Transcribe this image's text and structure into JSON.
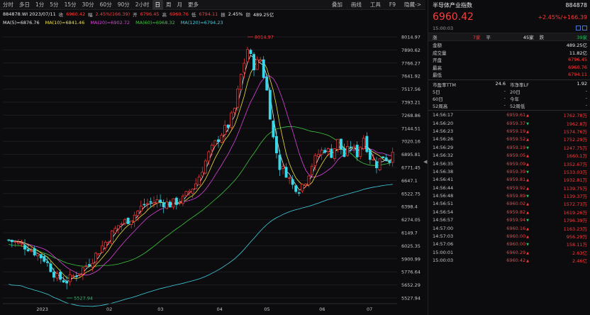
{
  "toolbar": {
    "periods": [
      "分时",
      "多日",
      "1分",
      "5分",
      "15分",
      "30分",
      "60分",
      "90分",
      "2小时",
      "日",
      "周",
      "月",
      "更多"
    ],
    "active_period": "日",
    "tools": [
      "叠加",
      "画线",
      "工具",
      "F9",
      "隐藏->"
    ]
  },
  "quote": {
    "code_date": "884878.WI 2023/07/11",
    "close_label": "收",
    "close_value": "6960.42",
    "change_label": "幅",
    "change_value": "2.45%(166.39)",
    "open_label": "开",
    "open_value": "6796.45",
    "high_label": "高",
    "high_value": "6960.76",
    "low_label": "低",
    "low_value": "6794.11",
    "amp_label": "振",
    "amp_value": "2.45%",
    "amount_label": "额",
    "amount_value": "489.25亿"
  },
  "ma": {
    "ma5": "MA(5)=6876.76",
    "ma10": "MA(10)=6841.46",
    "ma20": "MA(20)=6902.72",
    "ma60": "MA(60)=6968.32",
    "ma120": "MA(120)=6794.23",
    "colors": {
      "ma5": "#e8e8e8",
      "ma10": "#f0e040",
      "ma20": "#e040e0",
      "ma60": "#3cc83c",
      "ma120": "#40d0e0"
    }
  },
  "chart_data": {
    "type": "candlestick",
    "ytick_labels": [
      "8014.97",
      "7890.62",
      "7766.27",
      "7641.92",
      "7517.56",
      "7393.21",
      "7268.86",
      "7144.51",
      "7020.16",
      "6895.81",
      "6771.45",
      "6647.1",
      "6522.75",
      "6398.4",
      "6274.05",
      "6149.7",
      "6025.35",
      "5900.99",
      "5776.64",
      "5652.29",
      "5527.94"
    ],
    "ylim": [
      5527.94,
      8014.97
    ],
    "x_labels": [
      "2023",
      "02",
      "03",
      "04",
      "05",
      "06",
      "07"
    ],
    "max_annotation": "8014.97",
    "min_annotation": "5527.94",
    "colors": {
      "up": "#ff3b3b",
      "down": "#38d8e8"
    }
  },
  "panel": {
    "code": "884878",
    "name": "半导体产业指数",
    "price": "6960.42",
    "change_pct": "+2.45%",
    "change_pts": "+166.39",
    "time": "15:00:03",
    "breadth": {
      "up_label": "涨",
      "up_value": "7家",
      "flat_label": "平",
      "flat_value": "45家",
      "down_label": "跌",
      "down_value": "39家"
    },
    "stats": [
      {
        "label": "金额",
        "value": "489.25亿"
      },
      {
        "label": "成交量",
        "value": "11.82亿"
      },
      {
        "label": "开盘",
        "value": "6796.45"
      },
      {
        "label": "最高",
        "value": "6960.76"
      },
      {
        "label": "最低",
        "value": "6794.11"
      }
    ],
    "ratios": {
      "pe_label": "市盈率TTM",
      "pe_value": "24.6",
      "pb_label": "市净率LF",
      "pb_value": "1.92"
    },
    "returns": [
      {
        "l1": "5日",
        "v1": "-",
        "l2": "20日",
        "v2": "-"
      },
      {
        "l1": "60日",
        "v1": "-",
        "l2": "今年",
        "v2": "-"
      },
      {
        "l1": "52周高",
        "v1": "-",
        "l2": "52周低",
        "v2": "-"
      }
    ],
    "ticks": [
      {
        "time": "14:56:17",
        "price": "6959.61",
        "vol": "1762.78万"
      },
      {
        "time": "14:56:20",
        "price": "6959.37",
        "vol": "1962.8万"
      },
      {
        "time": "14:56:23",
        "price": "6959.19",
        "vol": "1574.76万"
      },
      {
        "time": "14:56:26",
        "price": "6959.52",
        "vol": "1752.29万"
      },
      {
        "time": "14:56:29",
        "price": "6959.19",
        "vol": "1247.75万"
      },
      {
        "time": "14:56:32",
        "price": "6959.05",
        "vol": "1660.1万"
      },
      {
        "time": "14:56:35",
        "price": "6959.09",
        "vol": "1352.67万"
      },
      {
        "time": "14:56:38",
        "price": "6959.39",
        "vol": "1533.03万"
      },
      {
        "time": "14:56:41",
        "price": "6959.81",
        "vol": "1932.81万"
      },
      {
        "time": "14:56:44",
        "price": "6959.92",
        "vol": "1139.75万"
      },
      {
        "time": "14:56:48",
        "price": "6959.89",
        "vol": "1139.37万"
      },
      {
        "time": "14:56:51",
        "price": "6960.02",
        "vol": "1572.73万"
      },
      {
        "time": "14:56:54",
        "price": "6959.82",
        "vol": "1619.26万"
      },
      {
        "time": "14:56:57",
        "price": "6959.94",
        "vol": "1796.39万"
      },
      {
        "time": "14:57:00",
        "price": "6960.16",
        "vol": "1163.23万"
      },
      {
        "time": "14:57:03",
        "price": "6960.00",
        "vol": "956.29万"
      },
      {
        "time": "14:57:06",
        "price": "6960.00",
        "vol": "158.11万"
      },
      {
        "time": "15:00:01",
        "price": "6960.29",
        "vol": "2.63亿"
      },
      {
        "time": "15:00:03",
        "price": "6960.42",
        "vol": "2.46亿"
      }
    ]
  }
}
